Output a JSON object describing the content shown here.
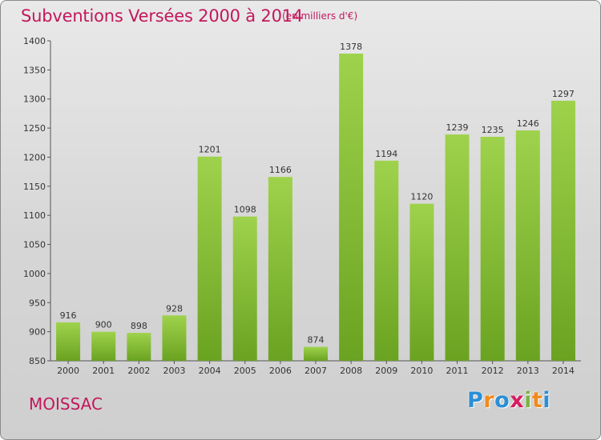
{
  "header": {
    "title": "Subventions Versées 2000 à 2014",
    "subtitle": "(en milliers d'€)"
  },
  "footer": {
    "city": "MOISSAC",
    "brand_letters": [
      {
        "char": "P",
        "color": "#2b8fd6"
      },
      {
        "char": "r",
        "color": "#f08a1c"
      },
      {
        "char": "o",
        "color": "#2b8fd6"
      },
      {
        "char": "x",
        "color": "#d81b60"
      },
      {
        "char": "i",
        "color": "#7cb342"
      },
      {
        "char": "t",
        "color": "#f08a1c"
      },
      {
        "char": "i",
        "color": "#2b8fd6"
      }
    ]
  },
  "colors": {
    "bar_top": "#9fd24c",
    "bar_bottom": "#6aa321",
    "title": "#c2185b"
  },
  "chart_data": {
    "type": "bar",
    "title": "Subventions Versées 2000 à 2014",
    "subtitle": "(en milliers d'€)",
    "xlabel": "",
    "ylabel": "",
    "categories": [
      "2000",
      "2001",
      "2002",
      "2003",
      "2004",
      "2005",
      "2006",
      "2007",
      "2008",
      "2009",
      "2010",
      "2011",
      "2012",
      "2013",
      "2014"
    ],
    "values": [
      916,
      900,
      898,
      928,
      1201,
      1098,
      1166,
      874,
      1378,
      1194,
      1120,
      1239,
      1235,
      1246,
      1297
    ],
    "ylim": [
      850,
      1400
    ],
    "yticks": [
      850,
      900,
      950,
      1000,
      1050,
      1100,
      1150,
      1200,
      1250,
      1300,
      1350,
      1400
    ],
    "grid": false,
    "legend": "none"
  }
}
